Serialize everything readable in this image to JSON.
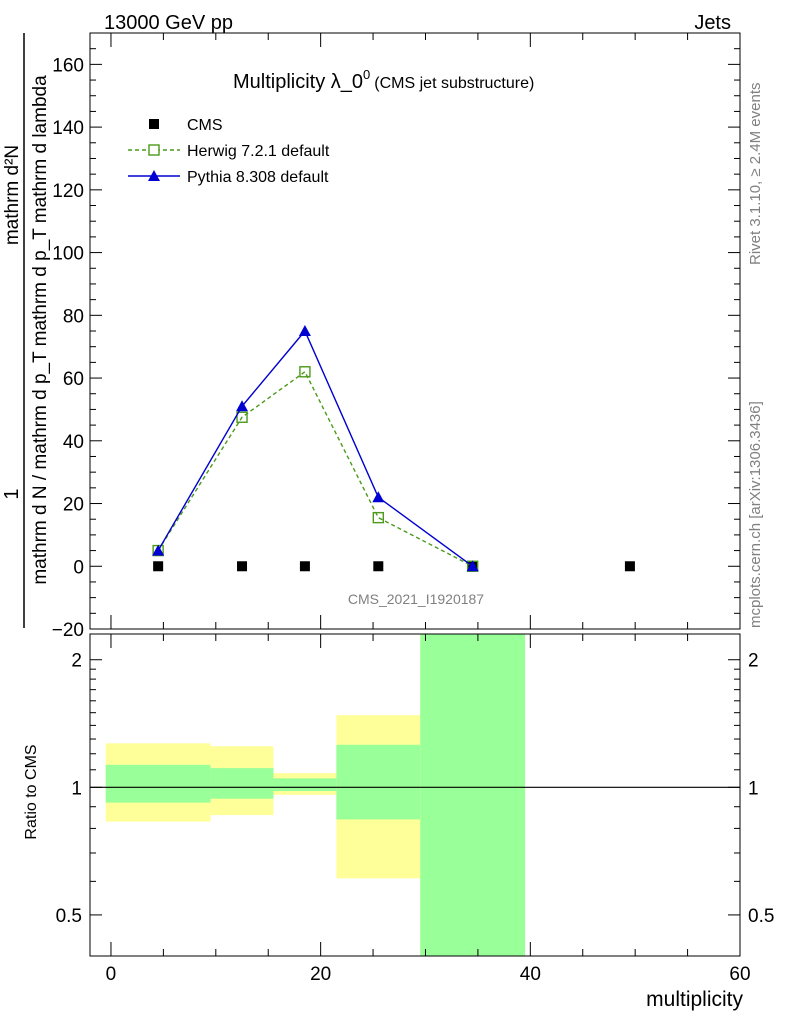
{
  "header": {
    "left": "13000 GeV pp",
    "right": "Jets"
  },
  "side": {
    "rivet": "Rivet 3.1.10, ≥ 2.4M events",
    "mcplots": "mcplots.cern.ch [arXiv:1306.3436]"
  },
  "plot": {
    "title_main": "Multiplicity λ_0",
    "title_sup": "0",
    "title_sub": "(CMS jet substructure)",
    "watermark": "CMS_2021_I1920187",
    "ylabel_numerator": "mathrm d²N",
    "ylabel_denominator": "mathrm d N / mathrm d p_T mathrm d p_T mathrm d lambda",
    "ylabel_one": "1",
    "ratio_ylabel": "Ratio to CMS",
    "xlabel": "multiplicity"
  },
  "chart_data": {
    "type": "line",
    "x_ticks": [
      "0",
      "20",
      "40",
      "60"
    ],
    "xlim": [
      -2,
      60
    ],
    "main": {
      "ylim": [
        -20,
        170
      ],
      "y_ticks": [
        "−20",
        "0",
        "20",
        "40",
        "60",
        "80",
        "100",
        "120",
        "140",
        "160"
      ],
      "legend_placement": "top-left",
      "series": [
        {
          "name": "CMS",
          "marker": "square",
          "color": "#000000",
          "x": [
            4.5,
            12.5,
            18.5,
            25.5,
            34.5,
            49.5
          ],
          "y": [
            0,
            0,
            0,
            0,
            0,
            0
          ]
        },
        {
          "name": "Herwig 7.2.1 default",
          "marker": "open-square",
          "color": "#4b9a1a",
          "dashed": true,
          "x": [
            4.5,
            12.5,
            18.5,
            25.5,
            34.5
          ],
          "y": [
            5,
            47.5,
            62,
            15.5,
            0
          ]
        },
        {
          "name": "Pythia 8.308 default",
          "marker": "triangle",
          "color": "#0000d0",
          "dashed": false,
          "x": [
            4.5,
            12.5,
            18.5,
            25.5,
            34.5
          ],
          "y": [
            5,
            51,
            75,
            22,
            0
          ]
        }
      ]
    },
    "ratio": {
      "scale": "log",
      "ylim": [
        0.4,
        2.3
      ],
      "y_ticks": [
        {
          "value": 0.5,
          "label": "0.5"
        },
        {
          "value": 1,
          "label": "1"
        },
        {
          "value": 2,
          "label": "2"
        }
      ],
      "bins": [
        {
          "x0": -0.5,
          "x1": 9.5,
          "yellow": [
            0.83,
            1.27
          ],
          "green": [
            0.92,
            1.13
          ]
        },
        {
          "x0": 9.5,
          "x1": 15.5,
          "yellow": [
            0.86,
            1.25
          ],
          "green": [
            0.94,
            1.11
          ]
        },
        {
          "x0": 15.5,
          "x1": 21.5,
          "yellow": [
            0.96,
            1.08
          ],
          "green": [
            0.98,
            1.05
          ]
        },
        {
          "x0": 21.5,
          "x1": 29.5,
          "yellow": [
            0.61,
            1.48
          ],
          "green": [
            0.84,
            1.26
          ]
        },
        {
          "x0": 29.5,
          "x1": 39.5,
          "yellow": [
            0.4,
            2.3
          ],
          "green": [
            0.4,
            2.3
          ]
        }
      ],
      "reference": 1
    },
    "colors": {
      "yellow": "#ffff99",
      "green": "#99ff99"
    }
  }
}
